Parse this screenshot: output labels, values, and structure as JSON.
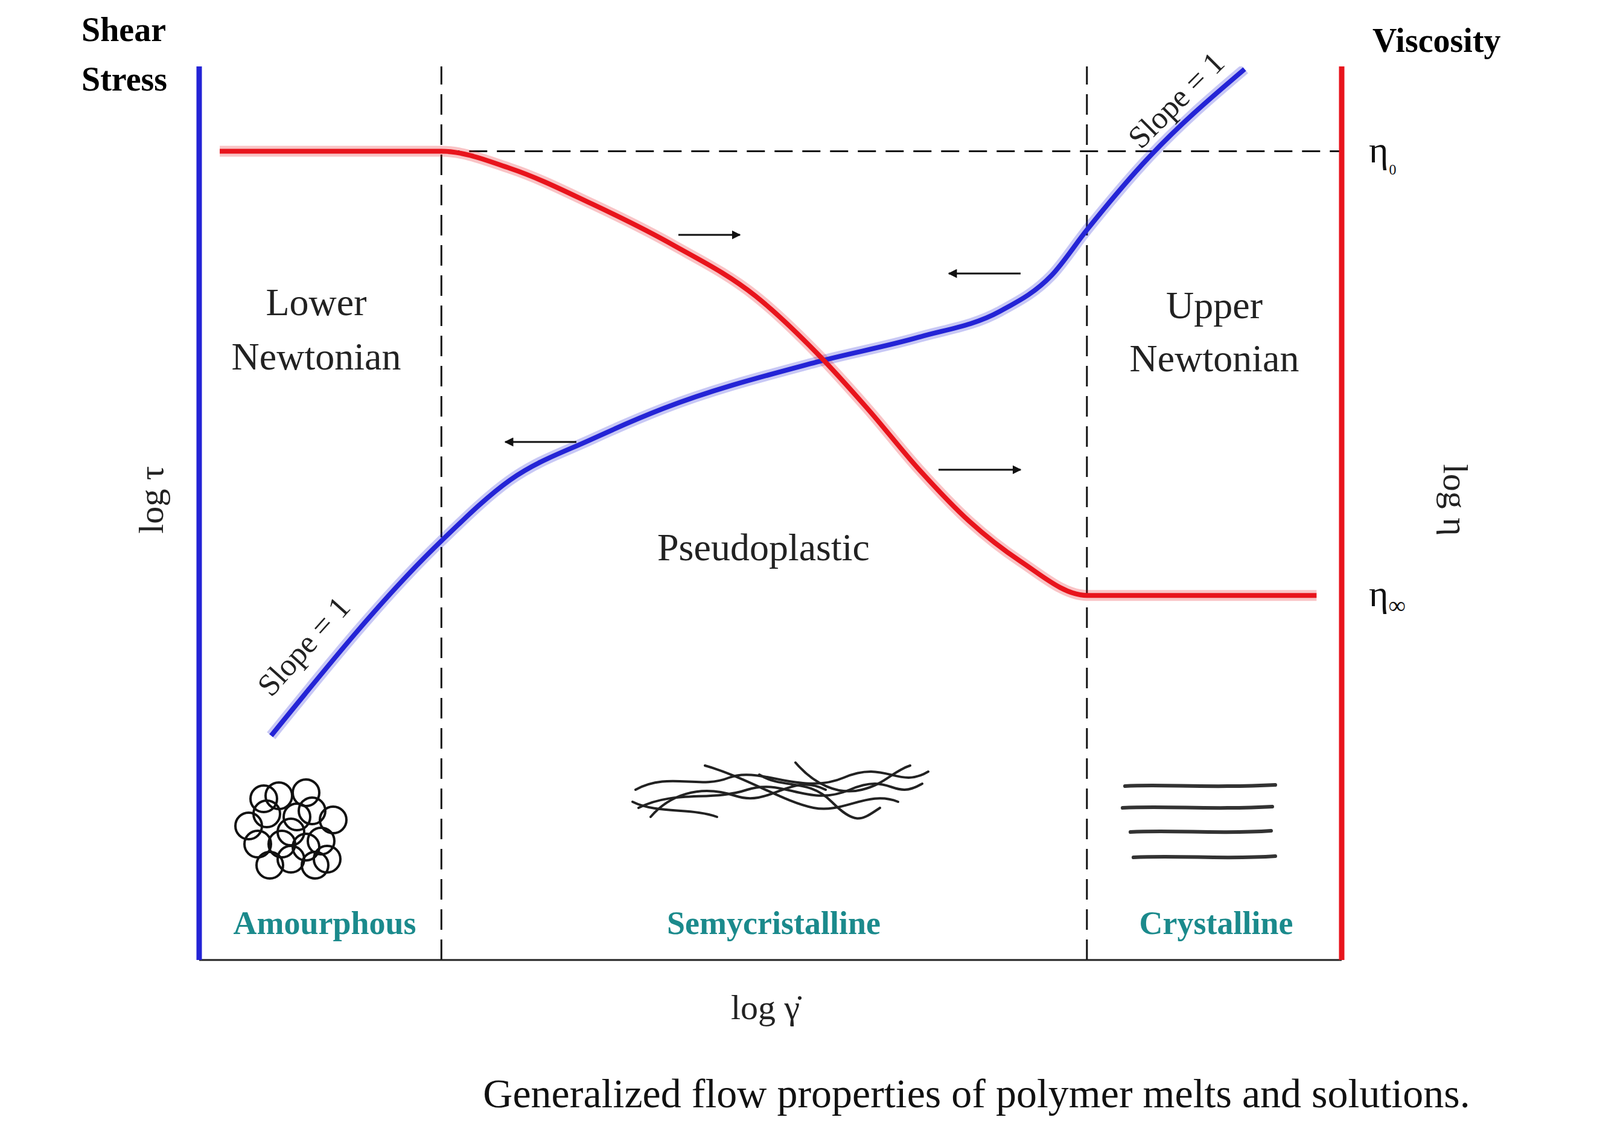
{
  "chart_data": {
    "type": "line",
    "caption": "Generalized flow properties of polymer melts and solutions.",
    "x_label": "log γ̇",
    "y_label": "log τ",
    "y2_label": "log η",
    "xlim": [
      0,
      100
    ],
    "ylim": [
      0,
      100
    ],
    "y2lim": [
      0,
      100
    ],
    "tick_labels": false,
    "grid": false,
    "series": [
      {
        "name": "Shear Stress",
        "color": "#2424d6",
        "axis": "y",
        "x": [
          6.3,
          21.2,
          27.2,
          34.4,
          40.6,
          54.0,
          63.0,
          70.1,
          74.6,
          77.7,
          82.6,
          91.5
        ],
        "values": [
          25.1,
          46.9,
          53.7,
          58.3,
          61.7,
          66.9,
          69.7,
          72.6,
          76.6,
          81.7,
          89.1,
          99.7
        ]
      },
      {
        "name": "Viscosity",
        "color": "#e8141c",
        "axis": "y2",
        "x": [
          1.8,
          21.2,
          27.2,
          34.4,
          41.5,
          48.7,
          54.0,
          58.5,
          63.0,
          67.4,
          71.9,
          77.7,
          97.8
        ],
        "values": [
          90.5,
          90.5,
          88.6,
          84.6,
          80.0,
          74.3,
          68.0,
          61.7,
          54.9,
          49.1,
          44.6,
          40.8,
          40.8
        ]
      }
    ],
    "regions": [
      {
        "label": "Lower Newtonian",
        "material": "Amourphous",
        "from": 0,
        "to": 21.2
      },
      {
        "label": "Pseudoplastic",
        "material": "Semycristalline",
        "from": 21.2,
        "to": 77.7
      },
      {
        "label": "Upper Newtonian",
        "material": "Crystalline",
        "from": 77.7,
        "to": 100
      }
    ],
    "levels": [
      {
        "label": "η₀",
        "value": 90.5,
        "from": 21.2,
        "line_style": "dashed"
      },
      {
        "label": "η∞",
        "value": 40.8,
        "line_style": "none"
      }
    ],
    "annotations": [
      {
        "text": "Slope = 1"
      },
      {
        "text": "Slope = 1"
      }
    ]
  }
}
